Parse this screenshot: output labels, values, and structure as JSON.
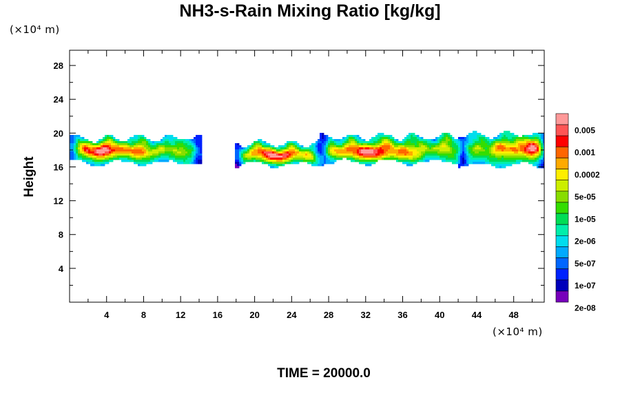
{
  "chart_data": {
    "type": "heatmap",
    "title": "NH3-s-Rain Mixing Ratio [kg/kg]",
    "ylabel": "Height",
    "x_unit": "(×10⁴ m)",
    "y_unit": "(×10⁴ m)",
    "x_ticks": [
      "4",
      "8",
      "12",
      "16",
      "20",
      "24",
      "28",
      "32",
      "36",
      "40",
      "44",
      "48"
    ],
    "y_ticks": [
      "4",
      "8",
      "12",
      "16",
      "20",
      "24",
      "28"
    ],
    "xlim": [
      0,
      51.3
    ],
    "ylim": [
      0,
      29.8
    ],
    "footer": "TIME = 20000.0",
    "colorbar": {
      "labels": [
        "0.005",
        "0.001",
        "0.0002",
        "5e-05",
        "1e-05",
        "2e-06",
        "5e-07",
        "1e-07",
        "2e-08"
      ],
      "colors": [
        "#ff9999",
        "#ff5555",
        "#ff0000",
        "#ff6600",
        "#ffaa00",
        "#ffee00",
        "#ccee00",
        "#88dd00",
        "#33dd00",
        "#00dd55",
        "#00eeaa",
        "#00ddee",
        "#00aaff",
        "#0066ff",
        "#0022ff",
        "#0000bb",
        "#7700bb"
      ]
    },
    "clouds": [
      {
        "x0": 0.3,
        "x1": 13.8,
        "ybot": 16.5,
        "ytop": 19.4,
        "core": [
          3.5,
          18.0,
          2.2,
          1.0
        ]
      },
      {
        "x0": 18.2,
        "x1": 27.0,
        "ybot": 16.3,
        "ytop": 18.8,
        "core": [
          22.5,
          17.3,
          2.2,
          0.8
        ]
      },
      {
        "x0": 27.5,
        "x1": 42.5,
        "ybot": 16.6,
        "ytop": 19.6,
        "core": [
          32.5,
          17.6,
          3.0,
          0.9
        ]
      },
      {
        "x0": 42.5,
        "x1": 51.3,
        "ybot": 16.2,
        "ytop": 19.8,
        "core": [
          50.0,
          18.2,
          1.8,
          1.2
        ]
      }
    ]
  }
}
